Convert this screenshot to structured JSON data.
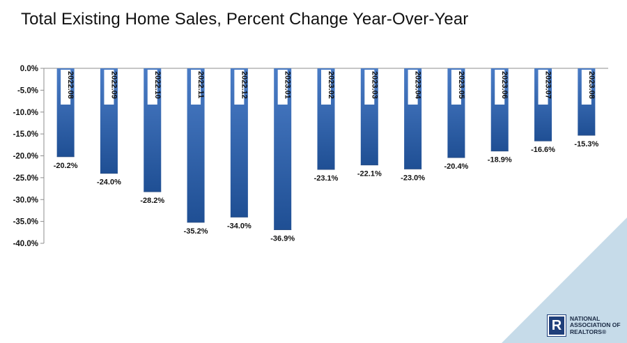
{
  "title": "Total Existing Home Sales, Percent Change Year-Over-Year",
  "colors": {
    "bar_top": "#4a7cc6",
    "bar_bottom": "#1f4f94",
    "corner_triangle": "#c6dbe9",
    "logo_blue": "#1f3f7a"
  },
  "logo": {
    "icon": "realtor-r-icon",
    "mark": "R",
    "line1": "NATIONAL",
    "line2": "ASSOCIATION OF",
    "line3": "REALTORS®"
  },
  "chart_data": {
    "type": "bar",
    "title": "Total Existing Home Sales, Percent Change Year-Over-Year",
    "categories": [
      "2022.08",
      "2022.09",
      "2022.10",
      "2022.11",
      "2022.12",
      "2023.01",
      "2023.02",
      "2023.03",
      "2023.04",
      "2023.05",
      "2023.06",
      "2023.07",
      "2023.08"
    ],
    "values": [
      -20.2,
      -24.0,
      -28.2,
      -35.2,
      -34.0,
      -36.9,
      -23.1,
      -22.1,
      -23.0,
      -20.4,
      -18.9,
      -16.6,
      -15.3
    ],
    "value_labels": [
      "-20.2%",
      "-24.0%",
      "-28.2%",
      "-35.2%",
      "-34.0%",
      "-36.9%",
      "-23.1%",
      "-22.1%",
      "-23.0%",
      "-20.4%",
      "-18.9%",
      "-16.6%",
      "-15.3%"
    ],
    "ylim": [
      -40,
      0
    ],
    "yticks": [
      0,
      -5,
      -10,
      -15,
      -20,
      -25,
      -30,
      -35,
      -40
    ],
    "ytick_labels": [
      "0.0%",
      "-5.0%",
      "-10.0%",
      "-15.0%",
      "-20.0%",
      "-25.0%",
      "-30.0%",
      "-35.0%",
      "-40.0%"
    ],
    "xlabel": "",
    "ylabel": "",
    "grid": false,
    "legend": "none"
  }
}
